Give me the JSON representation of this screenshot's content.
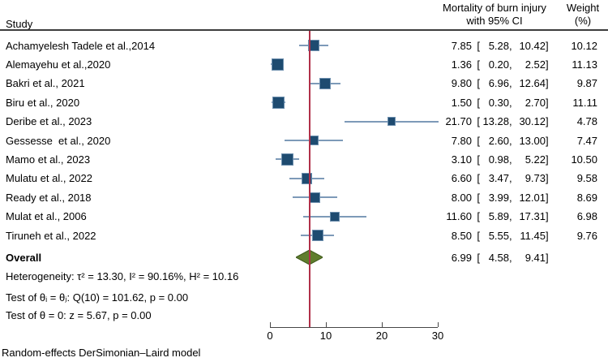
{
  "header": {
    "study_col": "Study",
    "effect_col_line1": "Mortality of burn injury",
    "effect_col_line2": "with 95% CI",
    "weight_col_line1": "Weight",
    "weight_col_line2": "(%)"
  },
  "chart_data": {
    "type": "forest",
    "xlim": [
      0,
      30
    ],
    "x_ticks": [
      0,
      10,
      20,
      30
    ],
    "reference_line": 6.99,
    "studies": [
      {
        "study": "Achamyelesh Tadele et al.,2014",
        "estimate": 7.85,
        "ci_low": 5.28,
        "ci_high": 10.42,
        "weight": 10.12
      },
      {
        "study": "Alemayehu et al.,2020",
        "estimate": 1.36,
        "ci_low": 0.2,
        "ci_high": 2.52,
        "weight": 11.13
      },
      {
        "study": "Bakri et al., 2021",
        "estimate": 9.8,
        "ci_low": 6.96,
        "ci_high": 12.64,
        "weight": 9.87
      },
      {
        "study": "Biru et al., 2020",
        "estimate": 1.5,
        "ci_low": 0.3,
        "ci_high": 2.7,
        "weight": 11.11
      },
      {
        "study": "Deribe et al., 2023",
        "estimate": 21.7,
        "ci_low": 13.28,
        "ci_high": 30.12,
        "weight": 4.78
      },
      {
        "study": "Gessesse  et al., 2020",
        "estimate": 7.8,
        "ci_low": 2.6,
        "ci_high": 13.0,
        "weight": 7.47
      },
      {
        "study": "Mamo et al., 2023",
        "estimate": 3.1,
        "ci_low": 0.98,
        "ci_high": 5.22,
        "weight": 10.5
      },
      {
        "study": "Mulatu et al., 2022",
        "estimate": 6.6,
        "ci_low": 3.47,
        "ci_high": 9.73,
        "weight": 9.58
      },
      {
        "study": "Ready et al., 2018",
        "estimate": 8.0,
        "ci_low": 3.99,
        "ci_high": 12.01,
        "weight": 8.69
      },
      {
        "study": "Mulat et al., 2006",
        "estimate": 11.6,
        "ci_low": 5.89,
        "ci_high": 17.31,
        "weight": 6.98
      },
      {
        "study": "Tiruneh et al., 2022",
        "estimate": 8.5,
        "ci_low": 5.55,
        "ci_high": 11.45,
        "weight": 9.76
      }
    ],
    "overall": {
      "label": "Overall",
      "estimate": 6.99,
      "ci_low": 4.58,
      "ci_high": 9.41
    },
    "colors": {
      "marker_fill": "#1e4b70",
      "marker_border": "#6d8fae",
      "ci_line": "#7d9ab8",
      "reference_line": "#b03049",
      "diamond_fill": "#5f7d2d",
      "diamond_stroke": "#3f5a1c",
      "header_rule": "#3d3d3d",
      "axis": "#474747"
    }
  },
  "stats": {
    "heterogeneity": "Heterogeneity: τ² = 13.30, I² = 90.16%, H² = 10.16",
    "test_theta_ij": "Test of θᵢ = θⱼ: Q(10) = 101.62, p = 0.00",
    "test_theta_zero": "Test of θ = 0: z = 5.67, p = 0.00"
  },
  "footer": {
    "model_note": "Random-effects DerSimonian–Laird model"
  }
}
